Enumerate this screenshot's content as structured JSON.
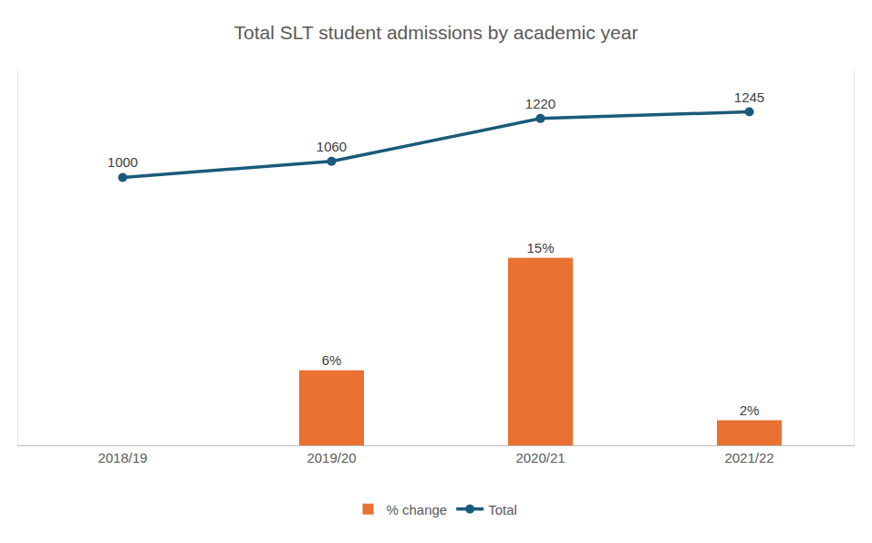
{
  "chart_data": {
    "type": "bar",
    "title": "Total SLT student admissions by academic year",
    "categories": [
      "2018/19",
      "2019/20",
      "2020/21",
      "2021/22"
    ],
    "series": [
      {
        "name": "% change",
        "type": "bar",
        "color": "#e97132",
        "values": [
          null,
          6,
          15,
          2
        ],
        "value_labels": [
          null,
          "6%",
          "15%",
          "2%"
        ]
      },
      {
        "name": "Total",
        "type": "line",
        "axis": "y2",
        "color": "#1b5a7a",
        "marker": "circle",
        "values": [
          1000,
          1060,
          1220,
          1245
        ]
      }
    ],
    "ylim": [
      0,
      30
    ],
    "y2lim": [
      0,
      1400
    ],
    "data_labels": true,
    "tick_labels": "x",
    "grid": false,
    "legend": "bottom"
  }
}
